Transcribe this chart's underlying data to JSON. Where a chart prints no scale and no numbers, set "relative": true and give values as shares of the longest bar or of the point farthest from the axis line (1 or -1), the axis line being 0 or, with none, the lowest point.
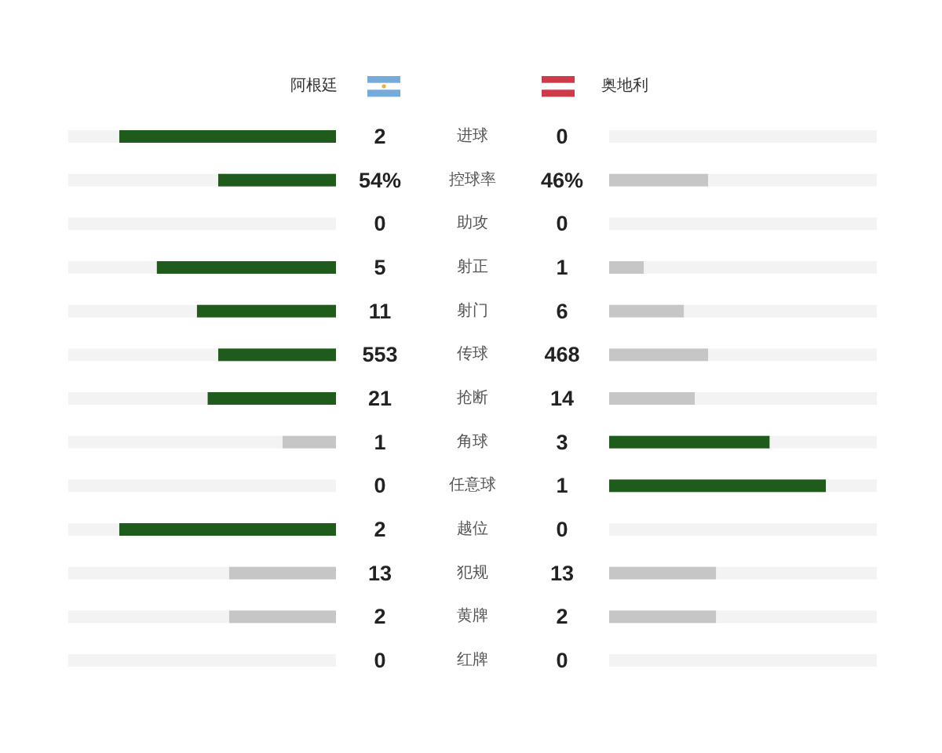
{
  "chart_data": [
    {
      "type": "bar",
      "orientation": "horizontal",
      "relative": true,
      "stacked": true,
      "categories": [
        "进球",
        "控球率",
        "助攻",
        "射正",
        "射门",
        "传球",
        "抢断",
        "角球",
        "任意球",
        "越位",
        "犯规",
        "黄牌",
        "红牌"
      ],
      "series": [
        {
          "name": "阿根廷",
          "values": [
            -0.81,
            -0.44,
            0,
            -0.67,
            -0.52,
            -0.44,
            -0.48,
            -0.2,
            0,
            -0.81,
            -0.4,
            -0.4,
            0
          ],
          "colors": [
            "#1f5c1b",
            "#1f5c1b",
            null,
            "#1f5c1b",
            "#1f5c1b",
            "#1f5c1b",
            "#1f5c1b",
            "#c6c6c6",
            null,
            "#1f5c1b",
            "#c6c6c6",
            "#c6c6c6",
            null
          ]
        },
        {
          "color": "#f3f3f3",
          "values": [
            -0.19,
            -0.56,
            -1,
            -0.33,
            -0.48,
            -0.56,
            -0.52,
            -0.8,
            -1,
            -0.19,
            -0.6,
            -0.6,
            -1
          ]
        }
      ]
    },
    {
      "type": "other",
      "annotations": [
        "2",
        "0",
        "54%",
        "46%",
        "0",
        "0",
        "5",
        "1",
        "11",
        "6",
        "553",
        "468",
        "21",
        "14",
        "1",
        "3",
        "0",
        "1",
        "2",
        "0",
        "13",
        "13",
        "2",
        "2",
        "0",
        "0"
      ]
    },
    {
      "type": "bar",
      "orientation": "horizontal",
      "relative": true,
      "stacked": true,
      "categories": [
        null,
        null,
        null,
        null,
        null,
        null,
        null,
        null,
        null,
        null,
        null,
        null,
        null
      ],
      "series": [
        {
          "name": "奥地利",
          "values": [
            0,
            0.37,
            0,
            0.13,
            0.28,
            0.37,
            0.32,
            0.6,
            0.81,
            0,
            0.4,
            0.4,
            0
          ],
          "colors": [
            null,
            "#c6c6c6",
            null,
            "#c6c6c6",
            "#c6c6c6",
            "#c6c6c6",
            "#c6c6c6",
            "#1f5c1b",
            "#1f5c1b",
            null,
            "#c6c6c6",
            "#c6c6c6",
            null
          ]
        },
        {
          "color": "#f3f3f3",
          "values": [
            1,
            0.63,
            1,
            0.87,
            0.72,
            0.63,
            0.68,
            0.4,
            0.19,
            1,
            0.6,
            0.6,
            1
          ]
        }
      ]
    }
  ]
}
